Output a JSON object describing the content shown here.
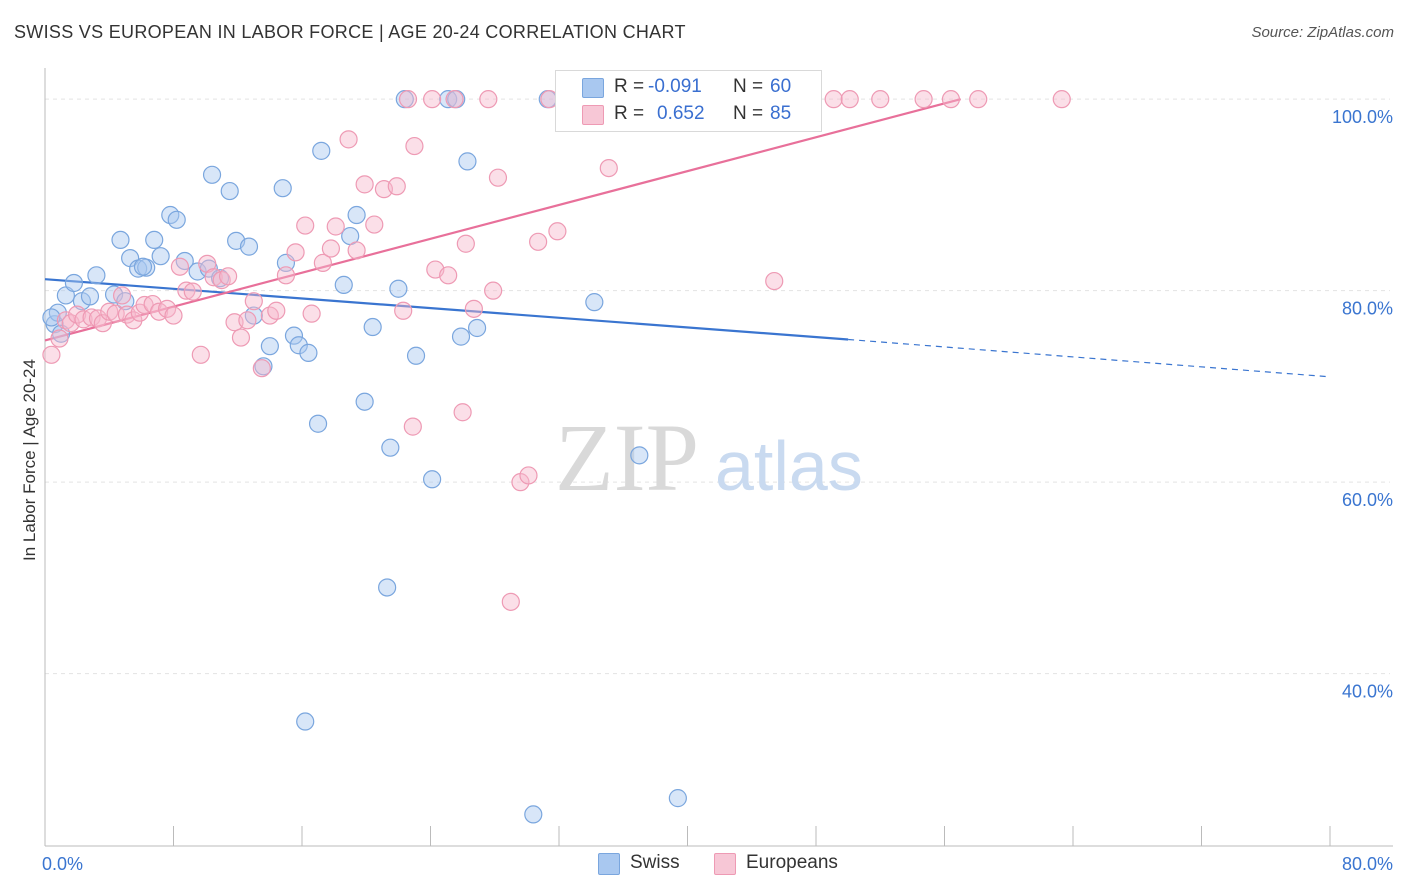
{
  "header": {
    "title": "SWISS VS EUROPEAN IN LABOR FORCE | AGE 20-24 CORRELATION CHART",
    "source": "Source: ZipAtlas.com"
  },
  "watermark": {
    "zip": "ZIP",
    "atlas": "atlas"
  },
  "legend": {
    "swiss": {
      "r_label": "R =",
      "r_value": "-0.091",
      "n_label": "N =",
      "n_value": "60"
    },
    "europeans": {
      "r_label": "R =",
      "r_value": "0.652",
      "n_label": "N =",
      "n_value": "85"
    }
  },
  "bottom_legend": {
    "swiss": "Swiss",
    "europeans": "Europeans"
  },
  "colors": {
    "swiss_fill": "#a9c8f0",
    "swiss_stroke": "#7aa6de",
    "swiss_line": "#3a75d0",
    "europeans_fill": "#f7b8cb",
    "europeans_stroke": "#ee9ab4",
    "europeans_line": "#e8709a",
    "axis_label": "#3a75d0",
    "grid": "#e3e3e3"
  },
  "chart_data": {
    "type": "scatter",
    "title": "SWISS VS EUROPEAN IN LABOR FORCE | AGE 20-24 CORRELATION CHART",
    "xlabel": "",
    "ylabel": "In Labor Force | Age 20-24",
    "xlim": [
      0,
      80
    ],
    "ylim": [
      22,
      102
    ],
    "x_tick_labels": [
      {
        "value": 0,
        "label": "0.0%"
      },
      {
        "value": 80,
        "label": "80.0%"
      }
    ],
    "y_tick_labels": [
      {
        "value": 100,
        "label": "100.0%"
      },
      {
        "value": 80,
        "label": "80.0%"
      },
      {
        "value": 60,
        "label": "60.0%"
      },
      {
        "value": 40,
        "label": "40.0%"
      }
    ],
    "grid": true,
    "legend_position": "top-center",
    "series": [
      {
        "name": "Swiss",
        "points": [
          [
            0.6,
            76.5
          ],
          [
            0.8,
            77.7
          ],
          [
            1.0,
            75.5
          ],
          [
            1.3,
            79.5
          ],
          [
            1.8,
            80.8
          ],
          [
            2.3,
            78.9
          ],
          [
            2.8,
            79.4
          ],
          [
            3.2,
            81.6
          ],
          [
            4.3,
            79.6
          ],
          [
            4.7,
            85.3
          ],
          [
            5.0,
            78.9
          ],
          [
            5.3,
            83.4
          ],
          [
            5.8,
            82.3
          ],
          [
            6.3,
            82.4
          ],
          [
            6.8,
            85.3
          ],
          [
            7.2,
            83.6
          ],
          [
            7.8,
            87.9
          ],
          [
            8.2,
            87.4
          ],
          [
            8.7,
            83.1
          ],
          [
            9.5,
            82.0
          ],
          [
            10.2,
            82.3
          ],
          [
            10.4,
            92.1
          ],
          [
            10.9,
            81.3
          ],
          [
            11.5,
            90.4
          ],
          [
            11.9,
            85.2
          ],
          [
            12.7,
            84.6
          ],
          [
            13.0,
            77.4
          ],
          [
            13.6,
            72.1
          ],
          [
            14.0,
            74.2
          ],
          [
            14.8,
            90.7
          ],
          [
            15.0,
            82.9
          ],
          [
            15.5,
            75.3
          ],
          [
            15.8,
            74.3
          ],
          [
            16.4,
            73.5
          ],
          [
            17.0,
            66.1
          ],
          [
            17.2,
            94.6
          ],
          [
            16.2,
            35.0
          ],
          [
            18.6,
            80.6
          ],
          [
            19.0,
            85.7
          ],
          [
            19.4,
            87.9
          ],
          [
            19.9,
            68.4
          ],
          [
            20.4,
            76.2
          ],
          [
            21.3,
            49.0
          ],
          [
            21.5,
            63.6
          ],
          [
            22.0,
            80.2
          ],
          [
            22.4,
            100.0
          ],
          [
            23.1,
            73.2
          ],
          [
            24.1,
            60.3
          ],
          [
            25.1,
            100.0
          ],
          [
            25.6,
            100.0
          ],
          [
            25.9,
            75.2
          ],
          [
            26.3,
            93.5
          ],
          [
            26.9,
            76.1
          ],
          [
            30.4,
            25.3
          ],
          [
            31.3,
            100.0
          ],
          [
            34.2,
            78.8
          ],
          [
            37.0,
            62.8
          ],
          [
            39.4,
            27.0
          ],
          [
            0.4,
            77.2
          ],
          [
            6.1,
            82.5
          ]
        ]
      },
      {
        "name": "Europeans",
        "points": [
          [
            0.4,
            73.3
          ],
          [
            0.9,
            75.0
          ],
          [
            1.3,
            76.9
          ],
          [
            1.6,
            76.6
          ],
          [
            2.0,
            77.5
          ],
          [
            2.4,
            77.0
          ],
          [
            2.9,
            77.2
          ],
          [
            3.3,
            77.1
          ],
          [
            3.6,
            76.6
          ],
          [
            4.0,
            77.8
          ],
          [
            4.4,
            77.6
          ],
          [
            4.8,
            79.5
          ],
          [
            5.1,
            77.5
          ],
          [
            5.5,
            76.9
          ],
          [
            5.9,
            77.7
          ],
          [
            6.2,
            78.5
          ],
          [
            6.7,
            78.6
          ],
          [
            7.1,
            77.8
          ],
          [
            7.6,
            78.1
          ],
          [
            8.0,
            77.4
          ],
          [
            8.4,
            82.5
          ],
          [
            8.8,
            80.0
          ],
          [
            9.2,
            79.9
          ],
          [
            9.7,
            73.3
          ],
          [
            10.1,
            82.8
          ],
          [
            10.5,
            81.4
          ],
          [
            11.0,
            81.1
          ],
          [
            11.4,
            81.5
          ],
          [
            11.8,
            76.7
          ],
          [
            12.2,
            75.1
          ],
          [
            12.6,
            76.9
          ],
          [
            13.0,
            78.9
          ],
          [
            13.5,
            71.9
          ],
          [
            14.0,
            77.4
          ],
          [
            14.4,
            77.9
          ],
          [
            15.0,
            81.6
          ],
          [
            15.6,
            84.0
          ],
          [
            16.2,
            86.8
          ],
          [
            16.6,
            77.6
          ],
          [
            17.3,
            82.9
          ],
          [
            17.8,
            84.4
          ],
          [
            18.1,
            86.7
          ],
          [
            18.9,
            95.8
          ],
          [
            19.4,
            84.2
          ],
          [
            19.9,
            91.1
          ],
          [
            20.5,
            86.9
          ],
          [
            21.1,
            90.6
          ],
          [
            21.9,
            90.9
          ],
          [
            22.3,
            77.9
          ],
          [
            22.6,
            100.0
          ],
          [
            22.9,
            65.8
          ],
          [
            23.0,
            95.1
          ],
          [
            24.1,
            100.0
          ],
          [
            24.3,
            82.2
          ],
          [
            25.1,
            81.6
          ],
          [
            25.5,
            100.0
          ],
          [
            26.0,
            67.3
          ],
          [
            26.2,
            84.9
          ],
          [
            26.7,
            78.1
          ],
          [
            27.6,
            100.0
          ],
          [
            27.9,
            80.0
          ],
          [
            28.2,
            91.8
          ],
          [
            29.0,
            47.5
          ],
          [
            29.6,
            60.0
          ],
          [
            30.1,
            60.7
          ],
          [
            30.7,
            85.1
          ],
          [
            31.4,
            100.0
          ],
          [
            31.9,
            86.2
          ],
          [
            33.0,
            100.0
          ],
          [
            34.6,
            100.0
          ],
          [
            35.1,
            92.8
          ],
          [
            37.3,
            100.0
          ],
          [
            38.6,
            100.0
          ],
          [
            40.2,
            100.0
          ],
          [
            41.7,
            100.0
          ],
          [
            45.4,
            81.0
          ],
          [
            46.5,
            100.0
          ],
          [
            49.1,
            100.0
          ],
          [
            50.1,
            100.0
          ],
          [
            52.0,
            100.0
          ],
          [
            54.7,
            100.0
          ],
          [
            56.4,
            100.0
          ],
          [
            58.1,
            100.0
          ],
          [
            63.3,
            100.0
          ],
          [
            42.1,
            100.0
          ]
        ]
      }
    ],
    "trend_lines": [
      {
        "series": "Swiss",
        "solid": [
          [
            0,
            81.2
          ],
          [
            50,
            74.9
          ]
        ],
        "dashed": [
          [
            50,
            74.9
          ],
          [
            80,
            71.0
          ]
        ]
      },
      {
        "series": "Europeans",
        "solid": [
          [
            0,
            74.8
          ],
          [
            57,
            100.0
          ]
        ]
      }
    ]
  }
}
